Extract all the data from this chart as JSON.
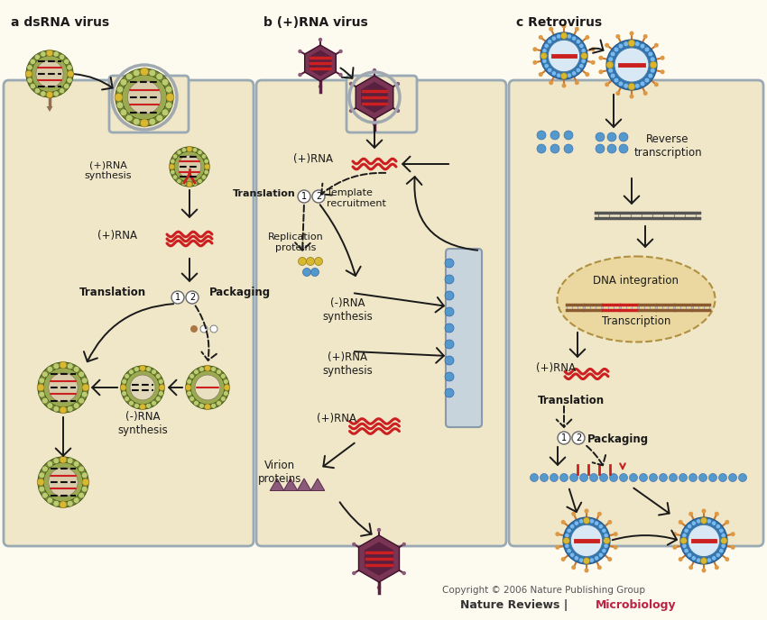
{
  "bg_color": "#FDFAF0",
  "cell_bg": "#F0E6C8",
  "border_color": "#9AAAB5",
  "title_a": "a dsRNA virus",
  "title_b": "b (+)RNA virus",
  "title_c": "c Retrovirus",
  "text_color": "#1A1A1A",
  "arrow_color": "#1A1A1A",
  "rna_red": "#CC2020",
  "virus_outer_green": "#7A8A3A",
  "virus_mid_green": "#9AAA50",
  "virus_inner_tan": "#D8CCAA",
  "virus_dot_green": "#AABA60",
  "virus_dot_yellow": "#D8B830",
  "virus_stripe_red": "#CC2020",
  "virus_stripe_dark": "#444444",
  "virus_stripe_black": "#111111",
  "hexagon_outer": "#7A3555",
  "hexagon_inner": "#5A2040",
  "spike_tan": "#907050",
  "spike_brown": "#6A4030",
  "retro_outer_blue": "#4488BB",
  "retro_mid_blue": "#3366AA",
  "retro_inner_white": "#D8E8F0",
  "retro_dot_blue": "#5599CC",
  "retro_dot_gold": "#D8B830",
  "retro_spike_orange": "#CC7730",
  "nucleus_bg": "#EAD8A0",
  "nucleus_border": "#B09040",
  "copyright_text": "Copyright © 2006 Nature Publishing Group",
  "journal_plain": "Nature Reviews | ",
  "journal_colored": "Microbiology",
  "journal_color": "#BB2244"
}
